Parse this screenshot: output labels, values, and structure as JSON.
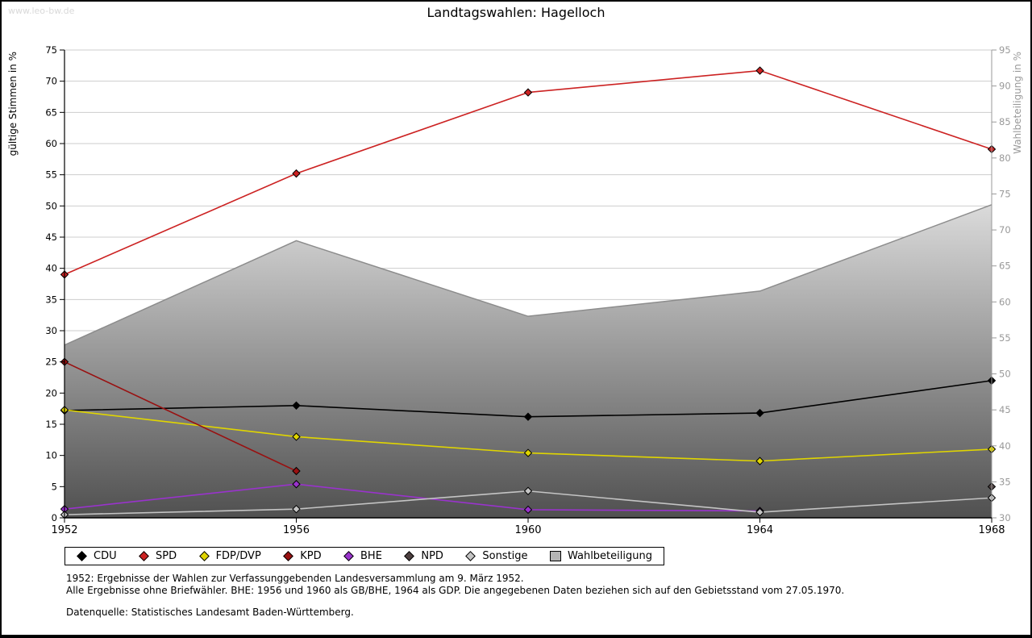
{
  "watermark": "www.leo-bw.de",
  "title": "Landtagswahlen: Hagelloch",
  "chart_data": {
    "type": "line",
    "x": [
      "1952",
      "1956",
      "1960",
      "1964",
      "1968"
    ],
    "left_axis": {
      "label": "gültige Stimmen in %",
      "min": 0,
      "max": 75,
      "step": 5
    },
    "right_axis": {
      "label": "Wahlbeteiligung in %",
      "min": 30,
      "max": 95,
      "step": 5
    },
    "grid": true,
    "legend_position": "bottom",
    "series": [
      {
        "name": "CDU",
        "color": "#000000",
        "values": [
          17.2,
          18.0,
          16.2,
          16.8,
          22.0
        ]
      },
      {
        "name": "SPD",
        "color": "#cc2222",
        "values": [
          39.0,
          55.2,
          68.2,
          71.7,
          59.1
        ]
      },
      {
        "name": "FDP/DVP",
        "color": "#e0d500",
        "values": [
          17.3,
          13.0,
          10.4,
          9.1,
          11.0
        ]
      },
      {
        "name": "KPD",
        "color": "#991111",
        "values": [
          25.0,
          7.5,
          null,
          null,
          null
        ]
      },
      {
        "name": "BHE",
        "color": "#9933cc",
        "values": [
          1.4,
          5.4,
          1.3,
          1.1,
          null
        ]
      },
      {
        "name": "NPD",
        "color": "#4d4040",
        "values": [
          null,
          null,
          null,
          null,
          5.0
        ]
      },
      {
        "name": "Sonstige",
        "color": "#c4c4c4",
        "values": [
          0.5,
          1.4,
          4.3,
          0.9,
          3.2
        ]
      }
    ],
    "area_series": {
      "name": "Wahlbeteiligung",
      "axis": "right",
      "line_color": "#8c8c8c",
      "fill_top": "#ffffff",
      "fill_bottom": "#505050",
      "values": [
        54.0,
        68.5,
        58.0,
        61.5,
        73.5
      ]
    }
  },
  "legend": {
    "items": [
      {
        "label": "CDU",
        "marker": "diamond",
        "color": "#000000"
      },
      {
        "label": "SPD",
        "marker": "diamond",
        "color": "#cc2222"
      },
      {
        "label": "FDP/DVP",
        "marker": "diamond",
        "color": "#e0d500"
      },
      {
        "label": "KPD",
        "marker": "diamond",
        "color": "#991111"
      },
      {
        "label": "BHE",
        "marker": "diamond",
        "color": "#9933cc"
      },
      {
        "label": "NPD",
        "marker": "diamond",
        "color": "#4d4040"
      },
      {
        "label": "Sonstige",
        "marker": "diamond",
        "color": "#c4c4c4"
      },
      {
        "label": "Wahlbeteiligung",
        "marker": "square",
        "color": "#b4b4b4"
      }
    ]
  },
  "footnotes": {
    "line1": "1952: Ergebnisse der Wahlen zur Verfassunggebenden Landesversammlung am 9. März 1952.",
    "line2": "Alle Ergebnisse ohne Briefwähler. BHE: 1956 und 1960 als GB/BHE, 1964 als GDP. Die angegebenen Daten beziehen sich auf den Gebietsstand vom 27.05.1970.",
    "source": "Datenquelle: Statistisches Landesamt Baden-Württemberg."
  }
}
